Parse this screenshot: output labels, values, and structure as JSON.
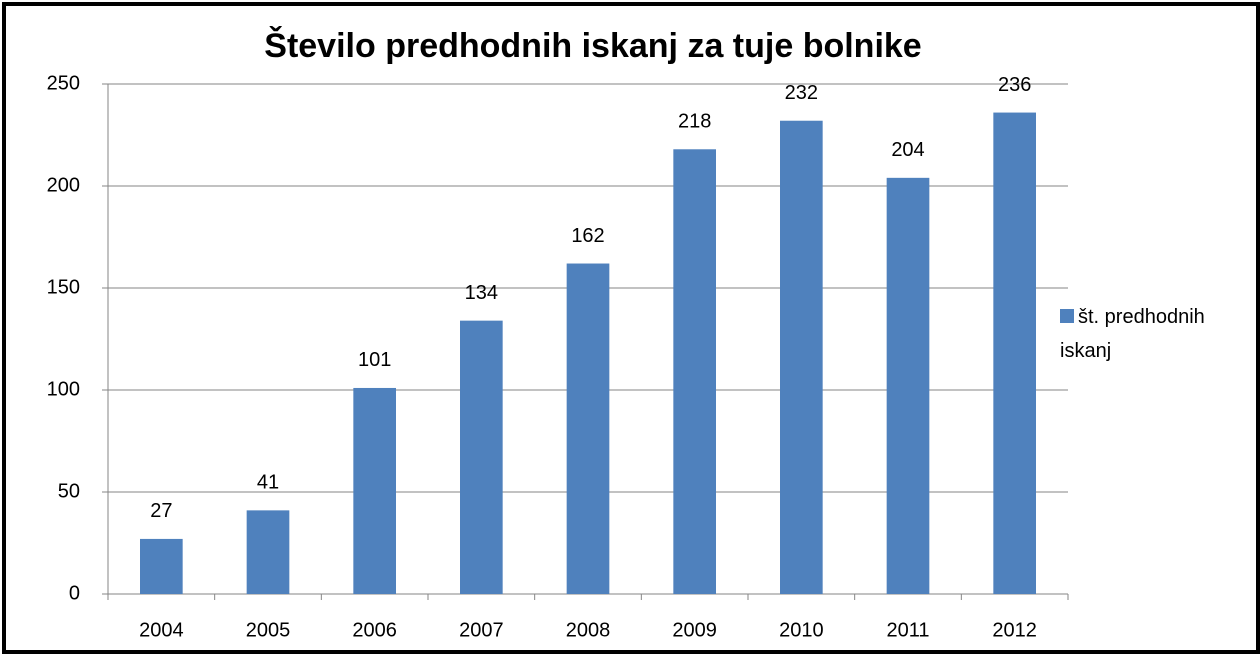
{
  "chart_data": {
    "type": "bar",
    "title": "Število predhodnih iskanj za tuje bolnike",
    "categories": [
      "2004",
      "2005",
      "2006",
      "2007",
      "2008",
      "2009",
      "2010",
      "2011",
      "2012"
    ],
    "series": [
      {
        "name": "št. predhodnih iskanj",
        "color": "#4f81bd",
        "values": [
          27,
          41,
          101,
          134,
          162,
          218,
          232,
          204,
          236
        ]
      }
    ],
    "ylim": [
      0,
      250
    ],
    "yticks": [
      0,
      50,
      100,
      150,
      200,
      250
    ],
    "grid": true,
    "legend": "right"
  }
}
